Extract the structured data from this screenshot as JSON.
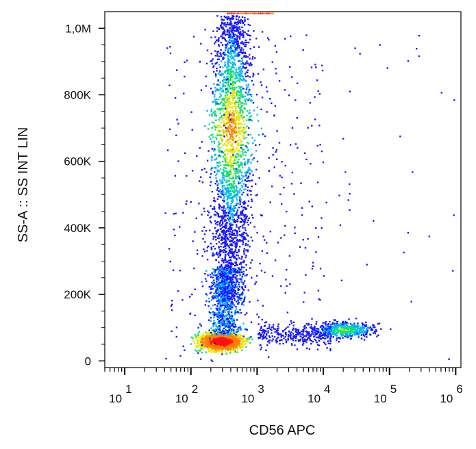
{
  "chart_data": {
    "type": "scatter",
    "subtype": "flow-cytometry-density-dot-plot",
    "xlabel": "CD56 APC",
    "ylabel": "SS-A :: SS INT LIN",
    "x_scale": "log",
    "xlim": [
      5,
      1200000
    ],
    "ylim": [
      -20000,
      1050000
    ],
    "x_ticks": [
      {
        "value": 10,
        "base": "10",
        "exp": "1"
      },
      {
        "value": 100,
        "base": "10",
        "exp": "2"
      },
      {
        "value": 1000,
        "base": "10",
        "exp": "3"
      },
      {
        "value": 10000,
        "base": "10",
        "exp": "4"
      },
      {
        "value": 100000,
        "base": "10",
        "exp": "5"
      },
      {
        "value": 1000000,
        "base": "10",
        "exp": "6"
      }
    ],
    "y_ticks": [
      {
        "value": 0,
        "label": "0"
      },
      {
        "value": 200000,
        "label": "200K"
      },
      {
        "value": 400000,
        "label": "400K"
      },
      {
        "value": 600000,
        "label": "600K"
      },
      {
        "value": 800000,
        "label": "800K"
      },
      {
        "value": 1000000,
        "label": "1,0M"
      }
    ],
    "grid": false,
    "legend": "none",
    "density_colors": [
      "#1a1aff",
      "#00b4ff",
      "#10e070",
      "#e6e600",
      "#ff8000",
      "#ff1010"
    ],
    "populations": [
      {
        "x_center": 300,
        "y_center": 65000,
        "density": "highest"
      },
      {
        "x_center": 400,
        "y_center": 700000,
        "density": "high"
      },
      {
        "x_center": 20000,
        "y_center": 95000,
        "density": "medium"
      }
    ]
  }
}
